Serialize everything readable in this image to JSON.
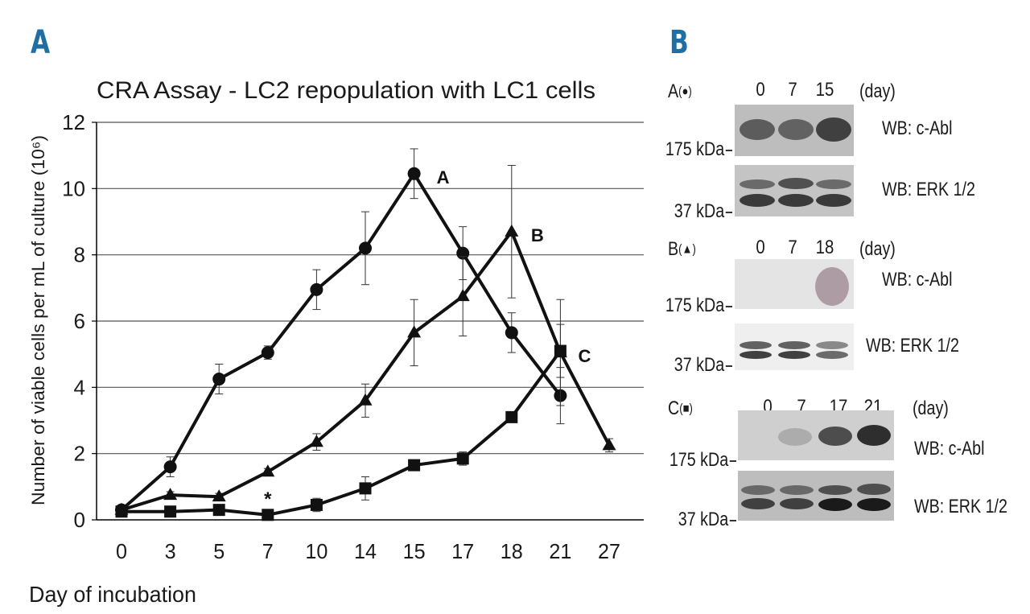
{
  "panels": {
    "a_letter": "A",
    "b_letter": "B"
  },
  "chart_data": {
    "type": "line",
    "title": "CRA Assay - LC2 repopulation with LC1 cells",
    "ylabel": "Number of viable cells per mL of culture (10⁶)",
    "xlabel": "Day of incubation",
    "categories": [
      "0",
      "3",
      "5",
      "7",
      "10",
      "14",
      "15",
      "17",
      "18",
      "21",
      "27"
    ],
    "ylim": [
      0,
      12
    ],
    "yticks": [
      0,
      2,
      4,
      6,
      8,
      10,
      12
    ],
    "grid": true,
    "series": [
      {
        "name": "A",
        "marker": "circle",
        "values": [
          0.3,
          1.6,
          4.25,
          5.05,
          6.95,
          8.2,
          10.45,
          8.05,
          5.65,
          3.75,
          null
        ],
        "errors": [
          0.1,
          0.3,
          0.45,
          0.2,
          0.6,
          1.1,
          0.75,
          0.8,
          0.6,
          0.85,
          null
        ]
      },
      {
        "name": "B",
        "marker": "triangle",
        "values": [
          0.3,
          0.75,
          0.7,
          1.45,
          2.35,
          3.6,
          5.65,
          6.75,
          8.7,
          5.05,
          2.25
        ],
        "errors": [
          0.1,
          0.1,
          0.1,
          0.1,
          0.25,
          0.5,
          1.0,
          1.2,
          2.0,
          1.6,
          0.2
        ]
      },
      {
        "name": "C",
        "marker": "square",
        "values": [
          0.25,
          0.25,
          0.3,
          0.15,
          0.45,
          0.95,
          1.65,
          1.85,
          3.1,
          5.1,
          null
        ],
        "errors": [
          0.05,
          0.05,
          0.05,
          0.05,
          0.2,
          0.35,
          0.1,
          0.2,
          0.15,
          0.8,
          null
        ]
      }
    ],
    "annotations": [
      {
        "text": "A",
        "series": "A"
      },
      {
        "text": "B",
        "series": "B"
      },
      {
        "text": "C",
        "series": "C"
      },
      {
        "text": "*",
        "series": "C"
      }
    ]
  },
  "blots": {
    "groups": [
      {
        "label": "A",
        "symbol": "●",
        "days": [
          "0",
          "7",
          "15"
        ],
        "day_unit": "(day)",
        "rows": [
          {
            "wb": "WB: c-Abl",
            "kda": "175 kDa"
          },
          {
            "wb": "WB: ERK 1/2",
            "kda": "37 kDa"
          }
        ]
      },
      {
        "label": "B",
        "symbol": "▲",
        "days": [
          "0",
          "7",
          "18"
        ],
        "day_unit": "(day)",
        "rows": [
          {
            "wb": "WB: c-Abl",
            "kda": "175 kDa"
          },
          {
            "wb": "WB: ERK 1/2",
            "kda": "37 kDa"
          }
        ]
      },
      {
        "label": "C",
        "symbol": "■",
        "days": [
          "0",
          "7",
          "17",
          "21"
        ],
        "day_unit": "(day)",
        "rows": [
          {
            "wb": "WB: c-Abl",
            "kda": "175 kDa"
          },
          {
            "wb": "WB: ERK 1/2",
            "kda": "37 kDa"
          }
        ]
      }
    ]
  }
}
